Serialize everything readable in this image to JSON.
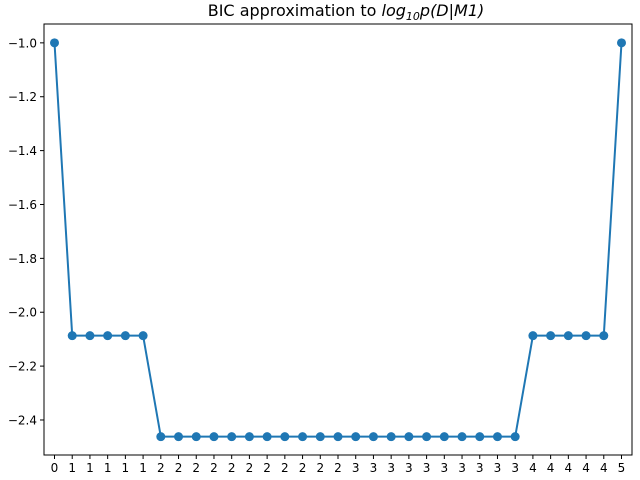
{
  "chart_data": {
    "type": "line",
    "title_parts": {
      "prefix": "BIC approximation to ",
      "func": "log",
      "sub": "10",
      "rest": "p(D|M1)"
    },
    "xlabel": "",
    "ylabel": "",
    "x_tick_labels": [
      "0",
      "1",
      "1",
      "1",
      "1",
      "1",
      "2",
      "2",
      "2",
      "2",
      "2",
      "2",
      "2",
      "2",
      "2",
      "2",
      "2",
      "3",
      "3",
      "3",
      "3",
      "3",
      "3",
      "3",
      "3",
      "3",
      "3",
      "4",
      "4",
      "4",
      "4",
      "4",
      "5"
    ],
    "ylim": [
      -2.53,
      -0.93
    ],
    "y_ticks": [
      -1.0,
      -1.2,
      -1.4,
      -1.6,
      -1.8,
      -2.0,
      -2.2,
      -2.4
    ],
    "y_tick_labels": [
      "−1.0",
      "−1.2",
      "−1.4",
      "−1.6",
      "−1.8",
      "−2.0",
      "−2.2",
      "−2.4"
    ],
    "series": [
      {
        "color": "#1f77b4",
        "values": [
          -1.0,
          -2.087,
          -2.087,
          -2.087,
          -2.087,
          -2.087,
          -2.462,
          -2.462,
          -2.462,
          -2.462,
          -2.462,
          -2.462,
          -2.462,
          -2.462,
          -2.462,
          -2.462,
          -2.462,
          -2.462,
          -2.462,
          -2.462,
          -2.462,
          -2.462,
          -2.462,
          -2.462,
          -2.462,
          -2.462,
          -2.462,
          -2.087,
          -2.087,
          -2.087,
          -2.087,
          -2.087,
          -1.0
        ]
      }
    ],
    "grid": false,
    "legend": "none"
  }
}
